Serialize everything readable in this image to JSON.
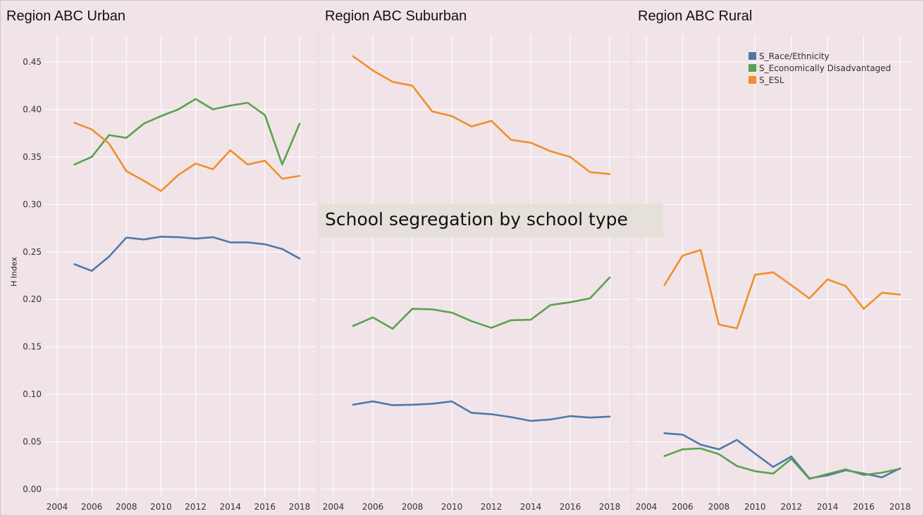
{
  "banner_title": "School segregation by school type",
  "colors": {
    "background": "#f0e4e8",
    "race": "#4e79a7",
    "econ": "#59a14f",
    "esl": "#f28e2b",
    "grid": "#ffffff"
  },
  "chart_data": [
    {
      "type": "line",
      "title": "Region ABC Urban",
      "ylabel": "H Index",
      "xlabel": "",
      "ylim": [
        0,
        0.47
      ],
      "yticks": [
        "0.00",
        "0.05",
        "0.10",
        "0.15",
        "0.20",
        "0.25",
        "0.30",
        "0.35",
        "0.40",
        "0.45"
      ],
      "xticks": [
        "2004",
        "2006",
        "2008",
        "2010",
        "2012",
        "2014",
        "2016",
        "2018"
      ],
      "x": [
        2005,
        2006,
        2007,
        2008,
        2009,
        2010,
        2011,
        2012,
        2013,
        2014,
        2015,
        2016,
        2017,
        2018
      ],
      "grid": true,
      "series": [
        {
          "name": "S_Race/Ethnicity",
          "color": "#4e79a7",
          "values": [
            0.237,
            0.23,
            0.245,
            0.265,
            0.263,
            0.266,
            0.2655,
            0.264,
            0.2655,
            0.26,
            0.26,
            0.258,
            0.253,
            0.243
          ]
        },
        {
          "name": "S_Economically Disadvantaged",
          "color": "#59a14f",
          "values": [
            0.342,
            0.35,
            0.373,
            0.37,
            0.385,
            0.393,
            0.4,
            0.411,
            0.4,
            0.404,
            0.407,
            0.394,
            0.342,
            0.385
          ]
        },
        {
          "name": "S_ESL",
          "color": "#f28e2b",
          "values": [
            0.386,
            0.379,
            0.364,
            0.335,
            0.325,
            0.314,
            0.331,
            0.343,
            0.337,
            0.357,
            0.342,
            0.346,
            0.327,
            0.33
          ]
        }
      ]
    },
    {
      "type": "line",
      "title": "Region ABC Suburban",
      "ylabel": "",
      "xlabel": "",
      "ylim": [
        0,
        0.47
      ],
      "yticks": [],
      "xticks": [
        "2004",
        "2006",
        "2008",
        "2010",
        "2012",
        "2014",
        "2016",
        "2018"
      ],
      "x": [
        2005,
        2006,
        2007,
        2008,
        2009,
        2010,
        2011,
        2012,
        2013,
        2014,
        2015,
        2016,
        2017,
        2018
      ],
      "grid": true,
      "series": [
        {
          "name": "S_Race/Ethnicity",
          "color": "#4e79a7",
          "values": [
            0.089,
            0.0925,
            0.0885,
            0.089,
            0.09,
            0.0925,
            0.0805,
            0.079,
            0.076,
            0.072,
            0.0735,
            0.077,
            0.0755,
            0.0765
          ]
        },
        {
          "name": "S_Economically Disadvantaged",
          "color": "#59a14f",
          "values": [
            0.172,
            0.181,
            0.169,
            0.19,
            0.1895,
            0.186,
            0.177,
            0.17,
            0.178,
            0.1785,
            0.194,
            0.197,
            0.201,
            0.223
          ]
        },
        {
          "name": "S_ESL",
          "color": "#f28e2b",
          "values": [
            0.456,
            0.441,
            0.429,
            0.425,
            0.398,
            0.393,
            0.382,
            0.388,
            0.368,
            0.365,
            0.356,
            0.35,
            0.334,
            0.332
          ]
        }
      ]
    },
    {
      "type": "line",
      "title": "Region ABC Rural",
      "ylabel": "",
      "xlabel": "",
      "ylim": [
        0,
        0.47
      ],
      "yticks": [],
      "xticks": [
        "2004",
        "2006",
        "2008",
        "2010",
        "2012",
        "2014",
        "2016",
        "2018"
      ],
      "x": [
        2005,
        2006,
        2007,
        2008,
        2009,
        2010,
        2011,
        2012,
        2013,
        2014,
        2015,
        2016,
        2017,
        2018
      ],
      "grid": true,
      "legend": {
        "position": "top-right",
        "entries": [
          "S_Race/Ethnicity",
          "S_Economically Disadvantaged",
          "S_ESL"
        ]
      },
      "series": [
        {
          "name": "S_Race/Ethnicity",
          "color": "#4e79a7",
          "values": [
            0.059,
            0.0575,
            0.047,
            0.042,
            0.052,
            0.0375,
            0.0235,
            0.0345,
            0.0115,
            0.0145,
            0.02,
            0.0165,
            0.0125,
            0.022
          ]
        },
        {
          "name": "S_Economically Disadvantaged",
          "color": "#59a14f",
          "values": [
            0.035,
            0.042,
            0.043,
            0.037,
            0.0245,
            0.019,
            0.0165,
            0.032,
            0.011,
            0.016,
            0.021,
            0.015,
            0.0175,
            0.0215
          ]
        },
        {
          "name": "S_ESL",
          "color": "#f28e2b",
          "values": [
            0.215,
            0.246,
            0.252,
            0.1735,
            0.1695,
            0.226,
            0.2285,
            0.215,
            0.201,
            0.221,
            0.214,
            0.19,
            0.207,
            0.205
          ]
        }
      ]
    }
  ]
}
